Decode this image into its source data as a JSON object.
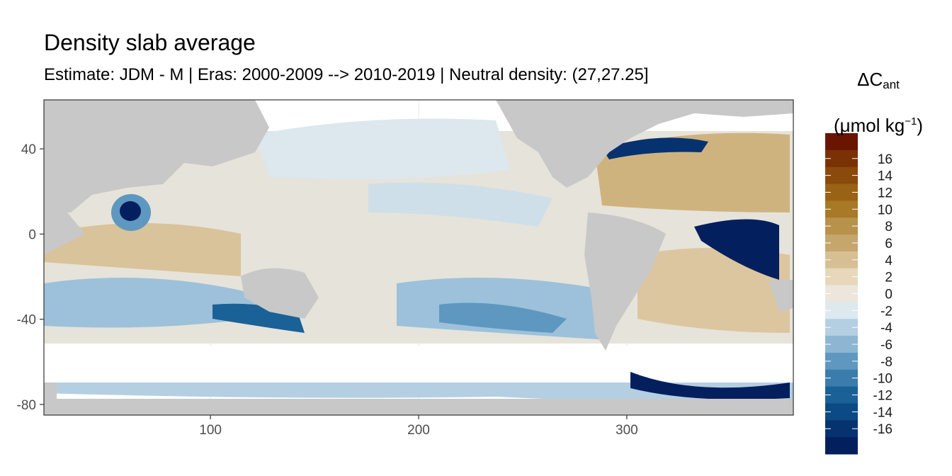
{
  "chart_data": {
    "type": "heatmap",
    "title": "Density slab average",
    "subtitle": "Estimate: JDM - M | Eras: 2000-2009 --> 2010-2019 | Neutral density: (27,27.25]",
    "xlabel": "",
    "ylabel": "",
    "xlim": [
      20,
      380
    ],
    "ylim": [
      -85,
      63
    ],
    "x_ticks": [
      100,
      200,
      300
    ],
    "y_ticks": [
      40,
      0,
      -40,
      -80
    ],
    "x_tick_labels": [
      "100",
      "200",
      "300"
    ],
    "y_tick_labels": [
      "40",
      "0",
      "-40",
      "-80"
    ],
    "grid": true,
    "land_color": "#c8c8c8",
    "no_data_color": "#ffffff",
    "legend": {
      "placement": "right",
      "title_main": "ΔC",
      "title_sub": "ant",
      "title_unit_open": "(μmol kg",
      "title_unit_sup": "−1",
      "title_unit_close": ")",
      "bins": [
        {
          "label": "",
          "color": "#6a1500"
        },
        {
          "label": "16",
          "color": "#7a3104"
        },
        {
          "label": "14",
          "color": "#8a4a0b"
        },
        {
          "label": "12",
          "color": "#9a6214"
        },
        {
          "label": "10",
          "color": "#a87a28"
        },
        {
          "label": "8",
          "color": "#b8914a"
        },
        {
          "label": "6",
          "color": "#c6a66c"
        },
        {
          "label": "4",
          "color": "#d6bf93"
        },
        {
          "label": "2",
          "color": "#e7d8bb"
        },
        {
          "label": "0",
          "color": "#ece6dc"
        },
        {
          "label": "-2",
          "color": "#dde8ef"
        },
        {
          "label": "-4",
          "color": "#b4cfe1"
        },
        {
          "label": "-6",
          "color": "#8cb6d2"
        },
        {
          "label": "-8",
          "color": "#5e98c0"
        },
        {
          "label": "-10",
          "color": "#3a7cab"
        },
        {
          "label": "-12",
          "color": "#1a6197"
        },
        {
          "label": "-14",
          "color": "#0b4a84"
        },
        {
          "label": "-16",
          "color": "#06336f"
        },
        {
          "label": "",
          "color": "#031f5e"
        }
      ]
    }
  }
}
